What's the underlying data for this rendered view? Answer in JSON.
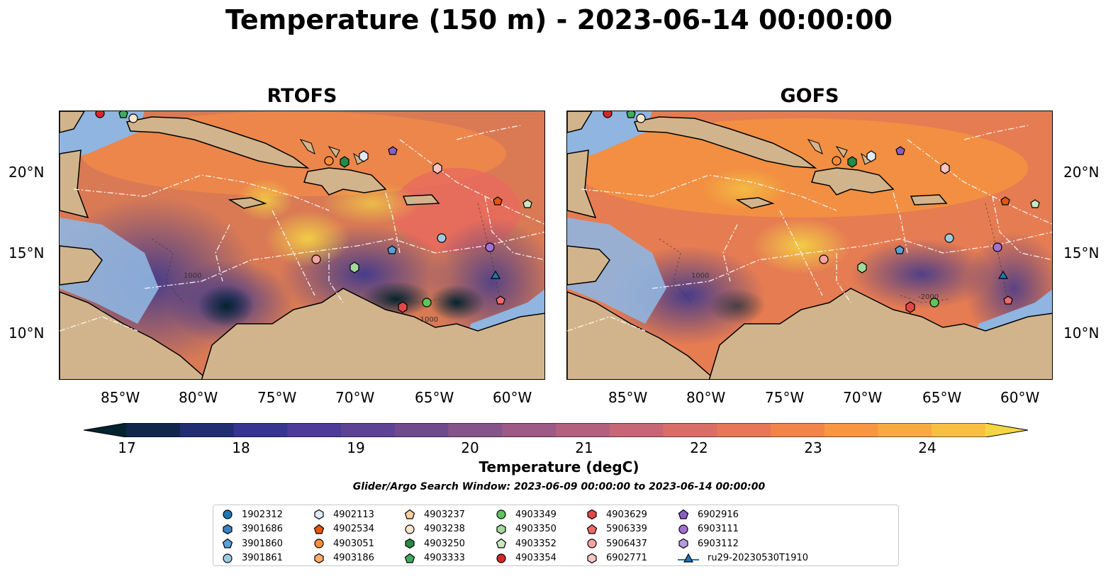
{
  "title": "Temperature (150 m) - 2023-06-14 00:00:00",
  "panels": [
    {
      "title": "RTOFS"
    },
    {
      "title": "GOFS"
    }
  ],
  "lat_ticks": [
    "20°N",
    "15°N",
    "10°N"
  ],
  "lon_ticks": [
    "85°W",
    "80°W",
    "75°W",
    "70°W",
    "65°W",
    "60°W"
  ],
  "colorbar": {
    "label": "Temperature (degC)",
    "ticks": [
      "17",
      "18",
      "19",
      "20",
      "21",
      "22",
      "23",
      "24"
    ],
    "colors": [
      "#04232f",
      "#10264d",
      "#222d72",
      "#363590",
      "#4d3b99",
      "#5e4395",
      "#6f4b8d",
      "#85548a",
      "#9c5a85",
      "#b1607e",
      "#c66676",
      "#d96e67",
      "#e67757",
      "#f2844a",
      "#f89642",
      "#f9aa3f",
      "#f8c041",
      "#f4d644"
    ]
  },
  "search_window": "Glider/Argo Search Window: 2023-06-09 00:00:00 to 2023-06-14 00:00:00",
  "legend": [
    {
      "label": "1902312",
      "marker": "circle",
      "color": "#1f77b4"
    },
    {
      "label": "3901686",
      "marker": "hexagon",
      "color": "#3b82c4"
    },
    {
      "label": "3901860",
      "marker": "pentagon",
      "color": "#5aa0d8"
    },
    {
      "label": "3901861",
      "marker": "circle",
      "color": "#9ecae1"
    },
    {
      "label": "4902113",
      "marker": "hexagon",
      "color": "#deebf7"
    },
    {
      "label": "4902534",
      "marker": "pentagon",
      "color": "#e6550d"
    },
    {
      "label": "4903051",
      "marker": "circle",
      "color": "#fd8d3c"
    },
    {
      "label": "4903186",
      "marker": "hexagon",
      "color": "#fdae6b"
    },
    {
      "label": "4903237",
      "marker": "pentagon",
      "color": "#fdd0a2"
    },
    {
      "label": "4903238",
      "marker": "circle",
      "color": "#fee6ce"
    },
    {
      "label": "4903250",
      "marker": "hexagon",
      "color": "#238b45"
    },
    {
      "label": "4903333",
      "marker": "pentagon",
      "color": "#41ab5d"
    },
    {
      "label": "4903349",
      "marker": "circle",
      "color": "#5fc45a"
    },
    {
      "label": "4903350",
      "marker": "hexagon",
      "color": "#a1d99b"
    },
    {
      "label": "4903352",
      "marker": "pentagon",
      "color": "#c7e9c0"
    },
    {
      "label": "4903354",
      "marker": "circle",
      "color": "#d62728"
    },
    {
      "label": "4903629",
      "marker": "hexagon",
      "color": "#e04848"
    },
    {
      "label": "5906339",
      "marker": "pentagon",
      "color": "#ef6a6a"
    },
    {
      "label": "5906437",
      "marker": "circle",
      "color": "#f4a3a3"
    },
    {
      "label": "6902771",
      "marker": "hexagon",
      "color": "#fcc5c0"
    },
    {
      "label": "6902916",
      "marker": "pentagon",
      "color": "#8a5fc0"
    },
    {
      "label": "6903111",
      "marker": "circle",
      "color": "#a56fd6"
    },
    {
      "label": "6903112",
      "marker": "hexagon",
      "color": "#b99ae0"
    },
    {
      "label": "ru29-20230530T1910",
      "marker": "triangle-line",
      "color": "#1f77b4"
    }
  ],
  "contour_labels": [
    "1000",
    "-1000",
    "-2000"
  ],
  "colors": {
    "land": "#d2b48c",
    "shelf": "#8fb5e0",
    "coast": "#000000"
  }
}
